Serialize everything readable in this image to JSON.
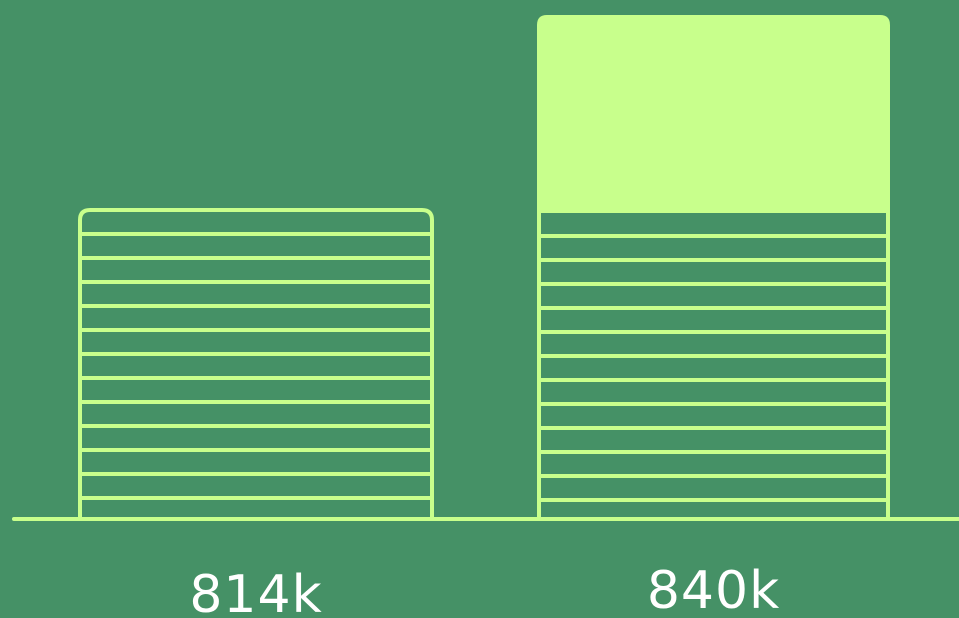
{
  "chart_data": {
    "type": "bar",
    "categories": [
      "",
      ""
    ],
    "values": [
      814000,
      840000
    ],
    "data_labels": [
      "814k",
      "840k"
    ],
    "title": "",
    "xlabel": "",
    "ylabel": "",
    "grid": false,
    "legend": "none"
  },
  "colors": {
    "background": "#459166",
    "accent": "#c8ff8c"
  }
}
